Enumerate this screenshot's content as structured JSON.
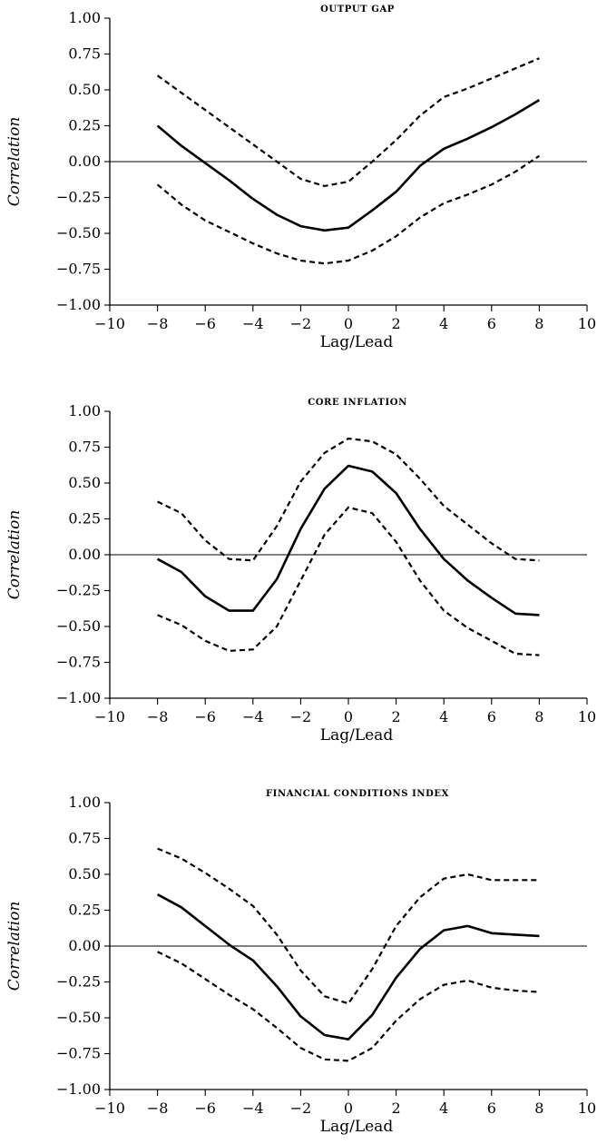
{
  "chart_data": [
    {
      "type": "line",
      "title": "OUTPUT GAP",
      "xlabel": "Lag/Lead",
      "ylabel": "Correlation",
      "xlim": [
        -10,
        10
      ],
      "ylim": [
        -1,
        1
      ],
      "xticks": [
        "−10",
        "−8",
        "−6",
        "−4",
        "−2",
        "0",
        "2",
        "4",
        "6",
        "8",
        "10"
      ],
      "yticks": [
        "1.00",
        "0.75",
        "0.50",
        "0.25",
        "0.00",
        "−0.25",
        "−0.50",
        "−0.75",
        "−1.00"
      ],
      "series": [
        {
          "style": "solid",
          "x": [
            -8,
            -7,
            -6,
            -5,
            -4,
            -3,
            -2,
            -1,
            0,
            1,
            2,
            3,
            4,
            5,
            6,
            7,
            8
          ],
          "y": [
            0.25,
            0.11,
            -0.01,
            -0.13,
            -0.26,
            -0.37,
            -0.45,
            -0.48,
            -0.46,
            -0.34,
            -0.21,
            -0.03,
            0.09,
            0.16,
            0.24,
            0.33,
            0.43
          ]
        },
        {
          "style": "dashed",
          "x": [
            -8,
            -7,
            -6,
            -5,
            -4,
            -3,
            -2,
            -1,
            0,
            1,
            2,
            3,
            4,
            5,
            6,
            7,
            8
          ],
          "y": [
            0.6,
            0.48,
            0.36,
            0.24,
            0.12,
            0.0,
            -0.12,
            -0.17,
            -0.14,
            0.0,
            0.15,
            0.32,
            0.45,
            0.51,
            0.58,
            0.65,
            0.72
          ]
        },
        {
          "style": "dashed",
          "x": [
            -8,
            -7,
            -6,
            -5,
            -4,
            -3,
            -2,
            -1,
            0,
            1,
            2,
            3,
            4,
            5,
            6,
            7,
            8
          ],
          "y": [
            -0.16,
            -0.3,
            -0.41,
            -0.49,
            -0.57,
            -0.64,
            -0.69,
            -0.71,
            -0.69,
            -0.62,
            -0.52,
            -0.39,
            -0.29,
            -0.23,
            -0.16,
            -0.07,
            0.04
          ]
        }
      ]
    },
    {
      "type": "line",
      "title": "CORE INFLATION",
      "xlabel": "Lag/Lead",
      "ylabel": "Correlation",
      "xlim": [
        -10,
        10
      ],
      "ylim": [
        -1,
        1
      ],
      "xticks": [
        "−10",
        "−8",
        "−6",
        "−4",
        "−2",
        "0",
        "2",
        "4",
        "6",
        "8",
        "10"
      ],
      "yticks": [
        "1.00",
        "0.75",
        "0.50",
        "0.25",
        "0.00",
        "−0.25",
        "−0.50",
        "−0.75",
        "−1.00"
      ],
      "series": [
        {
          "style": "solid",
          "x": [
            -8,
            -7,
            -6,
            -5,
            -4,
            -3,
            -2,
            -1,
            0,
            1,
            2,
            3,
            4,
            5,
            6,
            7,
            8
          ],
          "y": [
            -0.03,
            -0.12,
            -0.29,
            -0.39,
            -0.39,
            -0.17,
            0.18,
            0.46,
            0.62,
            0.58,
            0.43,
            0.18,
            -0.03,
            -0.18,
            -0.3,
            -0.41,
            -0.42
          ]
        },
        {
          "style": "dashed",
          "x": [
            -8,
            -7,
            -6,
            -5,
            -4,
            -3,
            -2,
            -1,
            0,
            1,
            2,
            3,
            4,
            5,
            6,
            7,
            8
          ],
          "y": [
            0.37,
            0.29,
            0.1,
            -0.03,
            -0.04,
            0.2,
            0.51,
            0.71,
            0.81,
            0.79,
            0.7,
            0.53,
            0.34,
            0.21,
            0.08,
            -0.03,
            -0.04
          ]
        },
        {
          "style": "dashed",
          "x": [
            -8,
            -7,
            -6,
            -5,
            -4,
            -3,
            -2,
            -1,
            0,
            1,
            2,
            3,
            4,
            5,
            6,
            7,
            8
          ],
          "y": [
            -0.42,
            -0.49,
            -0.6,
            -0.67,
            -0.66,
            -0.5,
            -0.18,
            0.14,
            0.33,
            0.29,
            0.09,
            -0.18,
            -0.39,
            -0.51,
            -0.6,
            -0.69,
            -0.7
          ]
        }
      ]
    },
    {
      "type": "line",
      "title": "FINANCIAL CONDITIONS INDEX",
      "xlabel": "Lag/Lead",
      "ylabel": "Correlation",
      "xlim": [
        -10,
        10
      ],
      "ylim": [
        -1,
        1
      ],
      "xticks": [
        "−10",
        "−8",
        "−6",
        "−4",
        "−2",
        "0",
        "2",
        "4",
        "6",
        "8",
        "10"
      ],
      "yticks": [
        "1.00",
        "0.75",
        "0.50",
        "0.25",
        "0.00",
        "−0.25",
        "−0.50",
        "−0.75",
        "−1.00"
      ],
      "series": [
        {
          "style": "solid",
          "x": [
            -8,
            -7,
            -6,
            -5,
            -4,
            -3,
            -2,
            -1,
            0,
            1,
            2,
            3,
            4,
            5,
            6,
            7,
            8
          ],
          "y": [
            0.36,
            0.27,
            0.14,
            0.01,
            -0.1,
            -0.28,
            -0.49,
            -0.62,
            -0.65,
            -0.48,
            -0.22,
            -0.02,
            0.11,
            0.14,
            0.09,
            0.08,
            0.07
          ]
        },
        {
          "style": "dashed",
          "x": [
            -8,
            -7,
            -6,
            -5,
            -4,
            -3,
            -2,
            -1,
            0,
            1,
            2,
            3,
            4,
            5,
            6,
            7,
            8
          ],
          "y": [
            0.68,
            0.61,
            0.51,
            0.4,
            0.28,
            0.08,
            -0.17,
            -0.35,
            -0.4,
            -0.16,
            0.14,
            0.34,
            0.47,
            0.5,
            0.46,
            0.46,
            0.46
          ]
        },
        {
          "style": "dashed",
          "x": [
            -8,
            -7,
            -6,
            -5,
            -4,
            -3,
            -2,
            -1,
            0,
            1,
            2,
            3,
            4,
            5,
            6,
            7,
            8
          ],
          "y": [
            -0.04,
            -0.12,
            -0.23,
            -0.34,
            -0.44,
            -0.57,
            -0.71,
            -0.79,
            -0.8,
            -0.71,
            -0.52,
            -0.37,
            -0.27,
            -0.24,
            -0.29,
            -0.31,
            -0.32
          ]
        }
      ]
    }
  ]
}
